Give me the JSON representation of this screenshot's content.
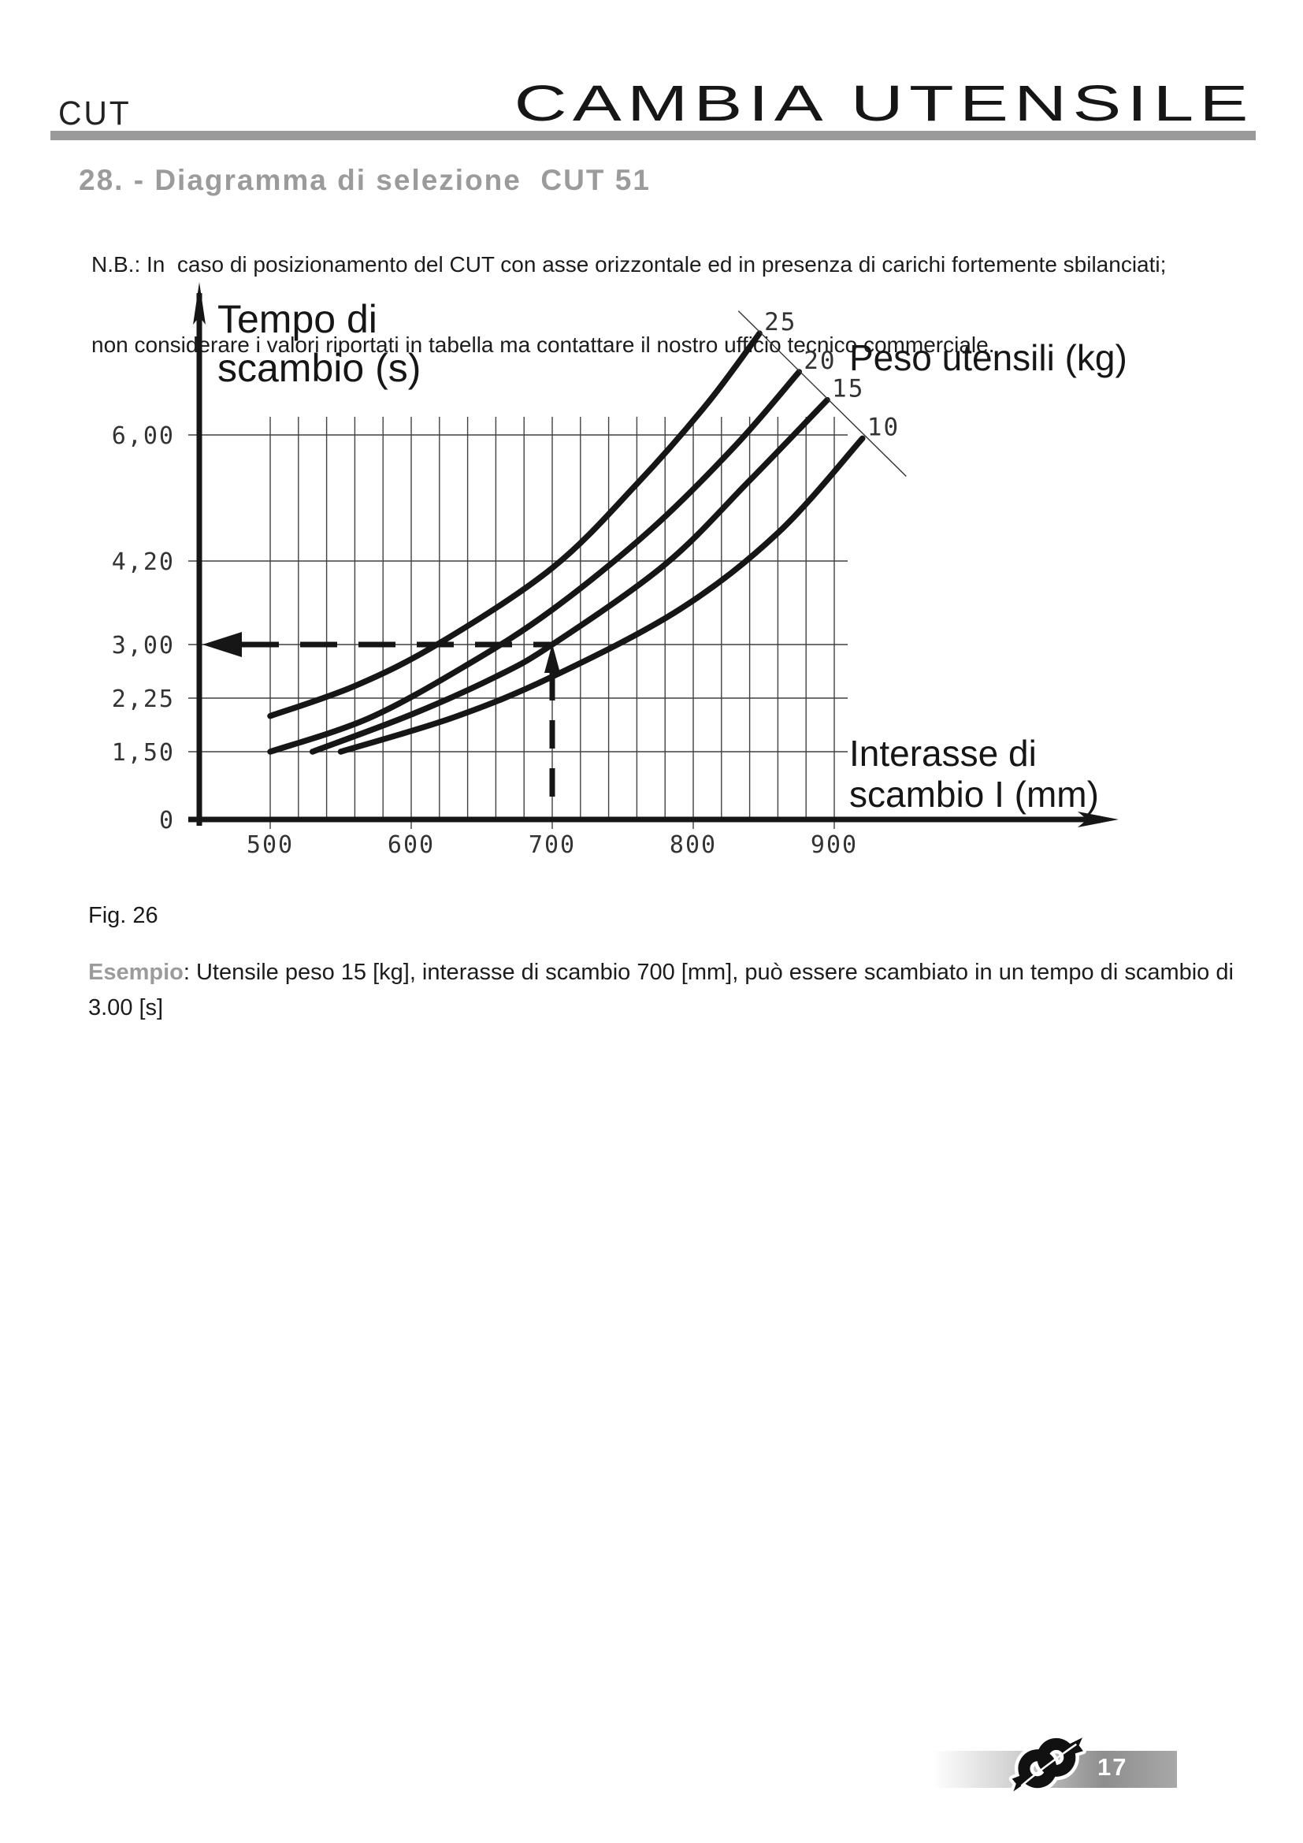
{
  "header": {
    "product_code": "CUT",
    "title": "CAMBIA UTENSILE"
  },
  "section": {
    "title": "28. - Diagramma di selezione  CUT 51"
  },
  "note": {
    "line1": "N.B.: In  caso di posizionamento del CUT con asse orizzontale ed in presenza di carichi fortemente sbilanciati;",
    "line2": "non considerare i valori riportati in tabella ma contattare il nostro ufficio tecnico commerciale."
  },
  "figure": {
    "caption": "Fig. 26"
  },
  "example": {
    "label": "Esempio",
    "line1": ": Utensile peso 15 [kg], interasse di scambio 700 [mm], può essere scambiato in un tempo di scambio di",
    "line2": "3.00 [s]"
  },
  "footer": {
    "page_number": "17"
  },
  "colors": {
    "ink": "#161616",
    "heading_gray": "#9b9b9b",
    "bar_gray": "#9a9a9a"
  },
  "chart_data": {
    "type": "line",
    "y_axis_title_lines": [
      "Tempo di",
      "scambio (s)"
    ],
    "x_axis_title_lines": [
      "Interasse di",
      "scambio  I (mm)"
    ],
    "series_title": "Peso utensili  (kg)",
    "xlabel": "Interasse di scambio I (mm)",
    "ylabel": "Tempo di scambio (s)",
    "x_ticks": [
      {
        "label": "500",
        "value": 500
      },
      {
        "label": "600",
        "value": 600
      },
      {
        "label": "700",
        "value": 700
      },
      {
        "label": "800",
        "value": 800
      },
      {
        "label": "900",
        "value": 900
      }
    ],
    "y_ticks": [
      {
        "label": "6,00",
        "value": 6.0
      },
      {
        "label": "4,20",
        "value": 4.2
      },
      {
        "label": "3,00",
        "value": 3.0
      },
      {
        "label": "2,25",
        "value": 2.25
      },
      {
        "label": "1,50",
        "value": 1.5
      },
      {
        "label": "0",
        "value": 0
      }
    ],
    "x_grid_range": [
      500,
      900
    ],
    "x_minor_grid_step": 20,
    "grid": true,
    "xlim": [
      450,
      1000
    ],
    "ylim": [
      0,
      8
    ],
    "series": [
      {
        "name": "25",
        "points": [
          [
            500,
            2.0
          ],
          [
            560,
            2.42
          ],
          [
            620,
            3.02
          ],
          [
            700,
            4.1
          ],
          [
            760,
            5.3
          ],
          [
            810,
            6.45
          ],
          [
            847,
            7.45
          ]
        ]
      },
      {
        "name": "20",
        "points": [
          [
            500,
            1.5
          ],
          [
            570,
            1.97
          ],
          [
            640,
            2.72
          ],
          [
            700,
            3.5
          ],
          [
            770,
            4.65
          ],
          [
            830,
            5.85
          ],
          [
            875,
            6.9
          ]
        ]
      },
      {
        "name": "15",
        "points": [
          [
            530,
            1.5
          ],
          [
            600,
            2.02
          ],
          [
            660,
            2.55
          ],
          [
            700,
            3.0
          ],
          [
            780,
            4.15
          ],
          [
            840,
            5.35
          ],
          [
            895,
            6.5
          ]
        ]
      },
      {
        "name": "10",
        "points": [
          [
            550,
            1.5
          ],
          [
            630,
            1.98
          ],
          [
            700,
            2.55
          ],
          [
            790,
            3.5
          ],
          [
            860,
            4.6
          ],
          [
            920,
            5.95
          ]
        ]
      }
    ],
    "leader_line": {
      "x1": 832,
      "y1": 7.77,
      "x2": 951,
      "y2": 5.41
    },
    "example_guide": {
      "x": 700,
      "y": 3.0
    }
  }
}
